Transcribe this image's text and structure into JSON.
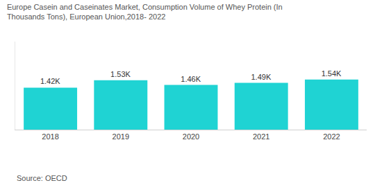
{
  "chart_data": {
    "type": "bar",
    "title": "Europe Casein and Caseinates Market, Consumption Volume of Whey Protein (In Thousands Tons), European Union,2018- 2022",
    "categories": [
      "2018",
      "2019",
      "2020",
      "2021",
      "2022"
    ],
    "values": [
      1420,
      1530,
      1460,
      1490,
      1540
    ],
    "value_labels": [
      "1.42K",
      "1.53K",
      "1.46K",
      "1.49K",
      "1.54K"
    ],
    "color": "#1fd3d3",
    "ylim": [
      800,
      2100
    ],
    "data_labels": true,
    "tick_labels": "x",
    "source": "Source: OECD"
  }
}
